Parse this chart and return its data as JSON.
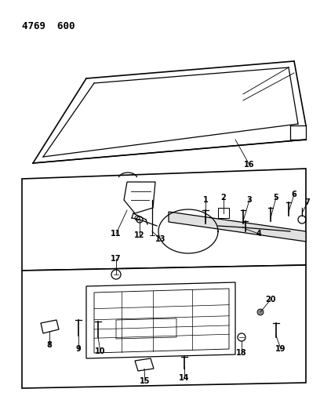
{
  "title": "4769  600",
  "bg_color": "#ffffff",
  "line_color": "#000000",
  "title_fontsize": 9,
  "label_fontsize": 7,
  "fig_width": 4.08,
  "fig_height": 5.33,
  "dpi": 100
}
